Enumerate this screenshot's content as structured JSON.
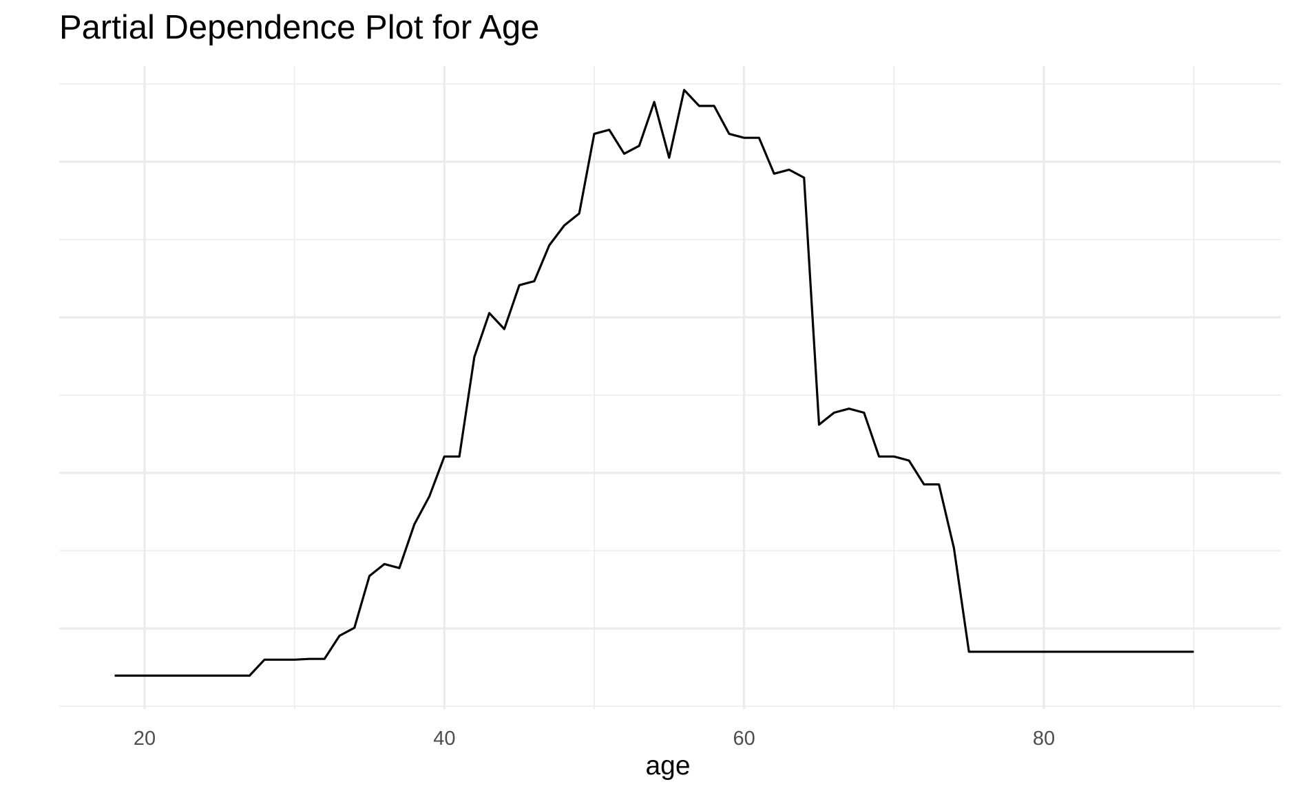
{
  "chart_data": {
    "type": "line",
    "title": "Partial Dependence Plot for Age",
    "xlabel": "age",
    "ylabel": "",
    "xlim": [
      12.3,
      96.0
    ],
    "x_ticks": [
      20,
      40,
      60,
      80
    ],
    "x_tick_labels": [
      "20",
      "40",
      "60",
      "80"
    ],
    "y_axis_labels_shown": false,
    "grid": true,
    "legend": "none",
    "line_color": "#000000",
    "grid_color": "#ebebeb",
    "series": [
      {
        "x": [
          18,
          19,
          20,
          21,
          22,
          23,
          24,
          25,
          26,
          27,
          28,
          29,
          30,
          31,
          32,
          33,
          34,
          35,
          36,
          37,
          38,
          39,
          40,
          41,
          42,
          43,
          44,
          45,
          46,
          47,
          48,
          49,
          50,
          51,
          52,
          53,
          54,
          55,
          56,
          57,
          58,
          59,
          60,
          61,
          62,
          63,
          64,
          65,
          66,
          67,
          68,
          69,
          70,
          71,
          72,
          73,
          74,
          75,
          76,
          77,
          78,
          79,
          80,
          81,
          82,
          83,
          84,
          85,
          86,
          87,
          88,
          89,
          90
        ],
        "y": [
          0.02,
          0.02,
          0.02,
          0.02,
          0.02,
          0.02,
          0.02,
          0.02,
          0.02,
          0.02,
          0.04,
          0.04,
          0.04,
          0.041,
          0.041,
          0.07,
          0.08,
          0.145,
          0.16,
          0.155,
          0.21,
          0.245,
          0.295,
          0.295,
          0.42,
          0.475,
          0.455,
          0.51,
          0.515,
          0.56,
          0.585,
          0.6,
          0.7,
          0.705,
          0.675,
          0.685,
          0.74,
          0.67,
          0.755,
          0.735,
          0.735,
          0.7,
          0.695,
          0.695,
          0.65,
          0.655,
          0.645,
          0.335,
          0.35,
          0.355,
          0.35,
          0.295,
          0.295,
          0.29,
          0.26,
          0.26,
          0.18,
          0.05,
          0.05,
          0.05,
          0.05,
          0.05,
          0.05,
          0.05,
          0.05,
          0.05,
          0.05,
          0.05,
          0.05,
          0.05,
          0.05,
          0.05,
          0.05
        ]
      }
    ]
  }
}
